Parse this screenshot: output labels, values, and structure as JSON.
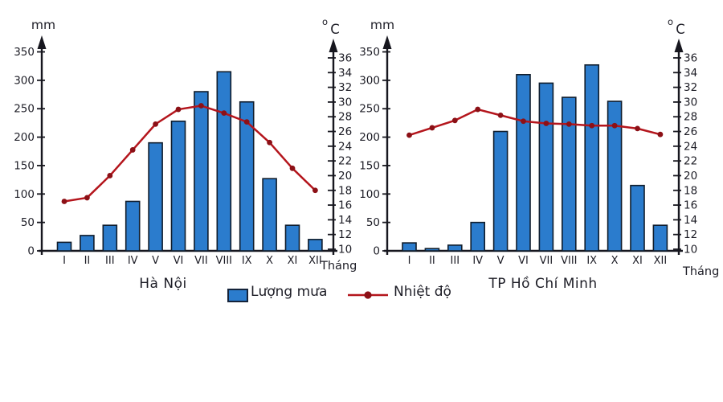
{
  "page": {
    "background": "#ffffff"
  },
  "legend": {
    "rain_label": "Lượng mưa",
    "temp_label": "Nhiệt độ"
  },
  "axes": {
    "rain_unit": "mm",
    "temp_unit_sup": "o",
    "temp_unit_main": "C",
    "month_axis_label": "Tháng",
    "rain_ticks": [
      0,
      50,
      100,
      150,
      200,
      250,
      300,
      350
    ],
    "temp_ticks": [
      10,
      12,
      14,
      16,
      18,
      20,
      22,
      24,
      26,
      28,
      30,
      32,
      34,
      36
    ]
  },
  "colors": {
    "bar_fill": "#2b7ccd",
    "bar_stroke": "#101d2c",
    "line": "#b4151c",
    "dot": "#8c1016",
    "axis": "#17171f",
    "text": "#1d1d26"
  },
  "chart_data": [
    {
      "type": "bar+line",
      "title": "Hà Nội",
      "xlabel": "Tháng",
      "ylabel_left": "mm",
      "ylabel_right": "°C",
      "ylim_left": [
        0,
        350
      ],
      "ylim_right": [
        10,
        36
      ],
      "grid": false,
      "categories": [
        "I",
        "II",
        "III",
        "IV",
        "V",
        "VI",
        "VII",
        "VIII",
        "IX",
        "X",
        "XI",
        "XII"
      ],
      "series": [
        {
          "name": "Lượng mưa",
          "type": "bar",
          "unit": "mm",
          "values": [
            15,
            27,
            45,
            87,
            190,
            228,
            280,
            315,
            262,
            127,
            45,
            20
          ]
        },
        {
          "name": "Nhiệt độ",
          "type": "line",
          "unit": "°C",
          "values": [
            16.5,
            17,
            20,
            23.5,
            27,
            29,
            29.5,
            28.5,
            27.3,
            24.5,
            21,
            18
          ]
        }
      ]
    },
    {
      "type": "bar+line",
      "title": "TP Hồ Chí Minh",
      "xlabel": "Tháng",
      "ylabel_left": "mm",
      "ylabel_right": "°C",
      "ylim_left": [
        0,
        350
      ],
      "ylim_right": [
        10,
        36
      ],
      "grid": false,
      "categories": [
        "I",
        "II",
        "III",
        "IV",
        "V",
        "VI",
        "VII",
        "VIII",
        "IX",
        "X",
        "XI",
        "XII"
      ],
      "series": [
        {
          "name": "Lượng mưa",
          "type": "bar",
          "unit": "mm",
          "values": [
            14,
            4,
            10,
            50,
            210,
            310,
            295,
            270,
            327,
            263,
            115,
            45
          ]
        },
        {
          "name": "Nhiệt độ",
          "type": "line",
          "unit": "°C",
          "values": [
            25.5,
            26.5,
            27.5,
            29,
            28.2,
            27.4,
            27.1,
            27,
            26.8,
            26.8,
            26.4,
            25.6
          ]
        }
      ]
    }
  ]
}
